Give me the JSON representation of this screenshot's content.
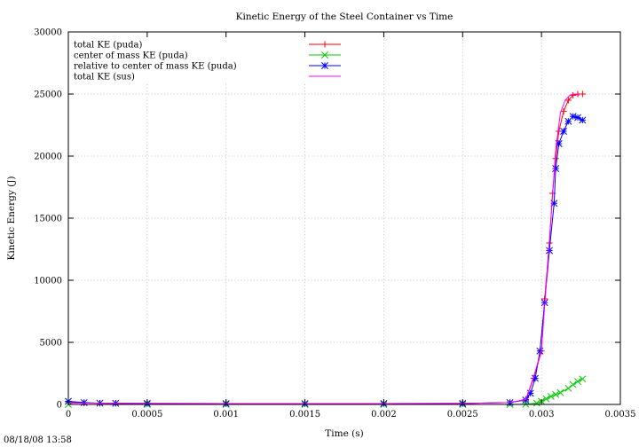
{
  "chart_data": {
    "type": "line",
    "title": "Kinetic Energy of the Steel Container vs Time",
    "xlabel": "Time (s)",
    "ylabel": "Kinetic Energy (J)",
    "xlim": [
      0,
      0.0035
    ],
    "ylim": [
      0,
      30000
    ],
    "xticks": [
      "0",
      "0.0005",
      "0.001",
      "0.0015",
      "0.002",
      "0.0025",
      "0.003",
      "0.0035"
    ],
    "yticks": [
      "0",
      "5000",
      "10000",
      "15000",
      "20000",
      "25000",
      "30000"
    ],
    "xtick_values": [
      0,
      0.0005,
      0.001,
      0.0015,
      0.002,
      0.0025,
      0.003,
      0.0035
    ],
    "ytick_values": [
      0,
      5000,
      10000,
      15000,
      20000,
      25000,
      30000
    ],
    "grid": true,
    "legend_position": "top-left",
    "series": [
      {
        "name": "total KE (puda)",
        "color": "#ff0000",
        "marker": "plus",
        "x": [
          0,
          0.0001,
          0.0002,
          0.0003,
          0.0005,
          0.001,
          0.0015,
          0.002,
          0.0025,
          0.0028,
          0.0029,
          0.00295,
          0.003,
          0.00302,
          0.00305,
          0.00307,
          0.00309,
          0.00311,
          0.00314,
          0.00317,
          0.0032,
          0.00323,
          0.00326
        ],
        "y": [
          200,
          120,
          100,
          90,
          80,
          70,
          70,
          75,
          80,
          150,
          400,
          2100,
          4300,
          8500,
          13000,
          17000,
          19800,
          22000,
          23600,
          24500,
          24900,
          25000,
          25000
        ]
      },
      {
        "name": "center of mass KE (puda)",
        "color": "#00c800",
        "marker": "cross",
        "x": [
          0,
          0.0005,
          0.001,
          0.0015,
          0.002,
          0.0025,
          0.0028,
          0.0029,
          0.00297,
          0.003,
          0.00303,
          0.00306,
          0.00309,
          0.00312,
          0.00317,
          0.0032,
          0.00323,
          0.00326
        ],
        "y": [
          0,
          0,
          0,
          0,
          0,
          0,
          0,
          20,
          100,
          250,
          450,
          650,
          800,
          950,
          1300,
          1600,
          1850,
          2050
        ]
      },
      {
        "name": "relative to center of mass KE (puda)",
        "color": "#0000ff",
        "marker": "star",
        "x": [
          0,
          0.0001,
          0.0002,
          0.0003,
          0.0005,
          0.001,
          0.0015,
          0.002,
          0.0025,
          0.0028,
          0.0029,
          0.00293,
          0.00296,
          0.00299,
          0.00302,
          0.00305,
          0.00308,
          0.00309,
          0.00311,
          0.00314,
          0.00317,
          0.0032,
          0.00323,
          0.00326
        ],
        "y": [
          250,
          150,
          100,
          90,
          80,
          70,
          70,
          75,
          80,
          150,
          350,
          900,
          2100,
          4300,
          8200,
          12400,
          16200,
          19000,
          21000,
          22000,
          22800,
          23200,
          23100,
          22900
        ]
      },
      {
        "name": "total KE (sus)",
        "color": "#ff00ff",
        "marker": "none",
        "x": [
          0,
          0.0005,
          0.001,
          0.0015,
          0.002,
          0.0025,
          0.0028,
          0.0029,
          0.00295,
          0.003,
          0.00305,
          0.00309,
          0.00312,
          0.00315,
          0.00318,
          0.0032,
          0.00322,
          0.00324
        ],
        "y": [
          120,
          80,
          70,
          70,
          75,
          80,
          150,
          400,
          2200,
          4400,
          13200,
          20500,
          23500,
          24500,
          24900,
          25000,
          25000,
          24900
        ]
      }
    ]
  },
  "timestamp": "08/18/08 13:58"
}
